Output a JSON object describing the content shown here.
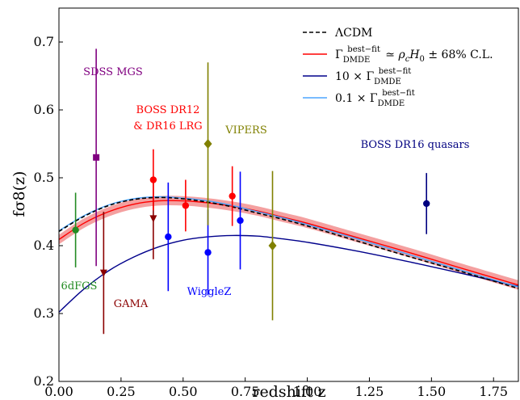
{
  "chart_data": {
    "type": "line",
    "xlabel": "redshift z",
    "ylabel": "fσ8(z)",
    "xlim": [
      0.0,
      1.85
    ],
    "ylim": [
      0.2,
      0.75
    ],
    "xticks": [
      "0.00",
      "0.25",
      "0.50",
      "0.75",
      "1.00",
      "1.25",
      "1.50",
      "1.75"
    ],
    "xtick_values": [
      0.0,
      0.25,
      0.5,
      0.75,
      1.0,
      1.25,
      1.5,
      1.75
    ],
    "yticks": [
      "0.2",
      "0.3",
      "0.4",
      "0.5",
      "0.6",
      "0.7"
    ],
    "ytick_values": [
      0.2,
      0.3,
      0.4,
      0.5,
      0.6,
      0.7
    ],
    "grid": false,
    "legend_position": "top-right",
    "legend": [
      {
        "label": "ΛCDM",
        "color": "#000000",
        "style": "dashed"
      },
      {
        "label": "Γ_DMDE^best−fit ≃ ρ_c H_0 ± 68% C.L.",
        "color": "#ff0000",
        "style": "solid"
      },
      {
        "label": "10 × Γ_DMDE^best−fit",
        "color": "#00008b",
        "style": "solid"
      },
      {
        "label": "0.1 × Γ_DMDE^best−fit",
        "color": "#4da6ff",
        "style": "solid"
      }
    ],
    "series": [
      {
        "name": "ΛCDM",
        "color": "#000000",
        "style": "dashed",
        "x": [
          0.0,
          0.1,
          0.2,
          0.3,
          0.4,
          0.5,
          0.6,
          0.7,
          0.8,
          0.9,
          1.0,
          1.2,
          1.4,
          1.6,
          1.85
        ],
        "y": [
          0.421,
          0.443,
          0.459,
          0.468,
          0.471,
          0.469,
          0.464,
          0.457,
          0.448,
          0.439,
          0.429,
          0.407,
          0.385,
          0.364,
          0.337
        ]
      },
      {
        "name": "Γ_DMDE^best−fit ≃ ρ_c H_0 ± 68% C.L.",
        "color": "#ff0000",
        "style": "solid",
        "band": 0.007,
        "x": [
          0.0,
          0.1,
          0.2,
          0.3,
          0.4,
          0.5,
          0.6,
          0.7,
          0.8,
          0.9,
          1.0,
          1.2,
          1.4,
          1.6,
          1.85
        ],
        "y": [
          0.409,
          0.433,
          0.45,
          0.461,
          0.466,
          0.466,
          0.463,
          0.458,
          0.451,
          0.442,
          0.433,
          0.412,
          0.391,
          0.369,
          0.342
        ]
      },
      {
        "name": "10 × Γ_DMDE^best−fit",
        "color": "#00008b",
        "style": "solid",
        "x": [
          0.0,
          0.1,
          0.2,
          0.3,
          0.4,
          0.5,
          0.6,
          0.7,
          0.8,
          0.9,
          1.0,
          1.2,
          1.4,
          1.6,
          1.85
        ],
        "y": [
          0.302,
          0.336,
          0.363,
          0.383,
          0.398,
          0.408,
          0.413,
          0.415,
          0.414,
          0.41,
          0.405,
          0.392,
          0.377,
          0.361,
          0.34
        ]
      },
      {
        "name": "0.1 × Γ_DMDE^best−fit",
        "color": "#4da6ff",
        "style": "solid",
        "x": [
          0.0,
          0.1,
          0.2,
          0.3,
          0.4,
          0.5,
          0.6,
          0.7,
          0.8,
          0.9,
          1.0,
          1.2,
          1.4,
          1.6,
          1.85
        ],
        "y": [
          0.422,
          0.444,
          0.46,
          0.469,
          0.472,
          0.47,
          0.466,
          0.459,
          0.45,
          0.441,
          0.431,
          0.41,
          0.388,
          0.366,
          0.339
        ]
      }
    ],
    "datasets": [
      {
        "label": "6dFGS",
        "color": "#228b22",
        "marker": "circle",
        "points": [
          {
            "x": 0.067,
            "y": 0.423,
            "lo": 0.055,
            "hi": 0.055
          }
        ]
      },
      {
        "label": "SDSS MGS",
        "color": "#800080",
        "marker": "square",
        "points": [
          {
            "x": 0.15,
            "y": 0.53,
            "lo": 0.16,
            "hi": 0.16
          }
        ]
      },
      {
        "label": "GAMA",
        "color": "#8b0000",
        "marker": "triangle-down",
        "points": [
          {
            "x": 0.18,
            "y": 0.36,
            "lo": 0.09,
            "hi": 0.09
          },
          {
            "x": 0.38,
            "y": 0.44,
            "lo": 0.06,
            "hi": 0.06
          }
        ]
      },
      {
        "label": "BOSS DR12\n& DR16 LRG",
        "color": "#ff0000",
        "marker": "circle",
        "points": [
          {
            "x": 0.38,
            "y": 0.497,
            "lo": 0.045,
            "hi": 0.045
          },
          {
            "x": 0.51,
            "y": 0.459,
            "lo": 0.038,
            "hi": 0.038
          },
          {
            "x": 0.698,
            "y": 0.473,
            "lo": 0.044,
            "hi": 0.044
          }
        ]
      },
      {
        "label": "WiggleZ",
        "color": "#0000ff",
        "marker": "circle",
        "points": [
          {
            "x": 0.44,
            "y": 0.413,
            "lo": 0.08,
            "hi": 0.08
          },
          {
            "x": 0.6,
            "y": 0.39,
            "lo": 0.063,
            "hi": 0.063
          },
          {
            "x": 0.73,
            "y": 0.437,
            "lo": 0.072,
            "hi": 0.072
          }
        ]
      },
      {
        "label": "VIPERS",
        "color": "#808000",
        "marker": "diamond",
        "points": [
          {
            "x": 0.6,
            "y": 0.55,
            "lo": 0.12,
            "hi": 0.12
          },
          {
            "x": 0.86,
            "y": 0.4,
            "lo": 0.11,
            "hi": 0.11
          }
        ]
      },
      {
        "label": "BOSS DR16 quasars",
        "color": "#000080",
        "marker": "circle",
        "points": [
          {
            "x": 1.48,
            "y": 0.462,
            "lo": 0.045,
            "hi": 0.045
          }
        ]
      }
    ]
  }
}
